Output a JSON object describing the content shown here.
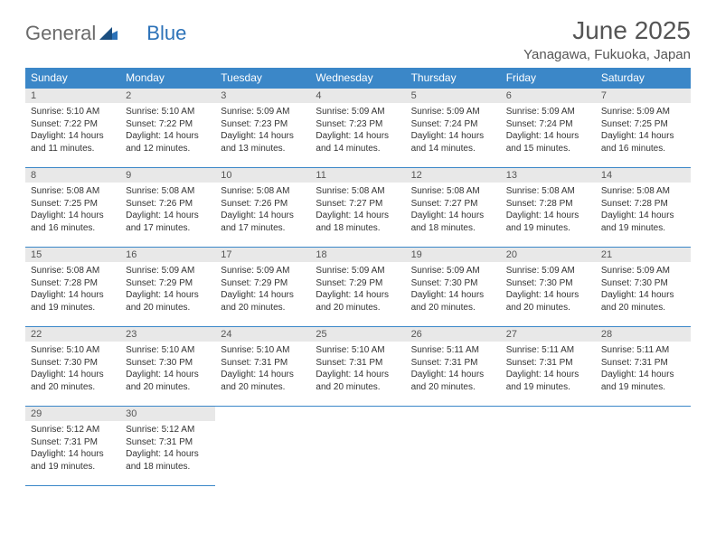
{
  "logo": {
    "text1": "General",
    "text2": "Blue"
  },
  "title": "June 2025",
  "location": "Yanagawa, Fukuoka, Japan",
  "colors": {
    "header_bg": "#3b87c8",
    "header_text": "#ffffff",
    "daynum_bg": "#e8e8e8",
    "text": "#333333",
    "border": "#3b87c8",
    "logo_gray": "#6b6b6b",
    "logo_blue": "#2c72b8"
  },
  "day_headers": [
    "Sunday",
    "Monday",
    "Tuesday",
    "Wednesday",
    "Thursday",
    "Friday",
    "Saturday"
  ],
  "weeks": [
    [
      {
        "n": "1",
        "sr": "5:10 AM",
        "ss": "7:22 PM",
        "dl": "14 hours and 11 minutes."
      },
      {
        "n": "2",
        "sr": "5:10 AM",
        "ss": "7:22 PM",
        "dl": "14 hours and 12 minutes."
      },
      {
        "n": "3",
        "sr": "5:09 AM",
        "ss": "7:23 PM",
        "dl": "14 hours and 13 minutes."
      },
      {
        "n": "4",
        "sr": "5:09 AM",
        "ss": "7:23 PM",
        "dl": "14 hours and 14 minutes."
      },
      {
        "n": "5",
        "sr": "5:09 AM",
        "ss": "7:24 PM",
        "dl": "14 hours and 14 minutes."
      },
      {
        "n": "6",
        "sr": "5:09 AM",
        "ss": "7:24 PM",
        "dl": "14 hours and 15 minutes."
      },
      {
        "n": "7",
        "sr": "5:09 AM",
        "ss": "7:25 PM",
        "dl": "14 hours and 16 minutes."
      }
    ],
    [
      {
        "n": "8",
        "sr": "5:08 AM",
        "ss": "7:25 PM",
        "dl": "14 hours and 16 minutes."
      },
      {
        "n": "9",
        "sr": "5:08 AM",
        "ss": "7:26 PM",
        "dl": "14 hours and 17 minutes."
      },
      {
        "n": "10",
        "sr": "5:08 AM",
        "ss": "7:26 PM",
        "dl": "14 hours and 17 minutes."
      },
      {
        "n": "11",
        "sr": "5:08 AM",
        "ss": "7:27 PM",
        "dl": "14 hours and 18 minutes."
      },
      {
        "n": "12",
        "sr": "5:08 AM",
        "ss": "7:27 PM",
        "dl": "14 hours and 18 minutes."
      },
      {
        "n": "13",
        "sr": "5:08 AM",
        "ss": "7:28 PM",
        "dl": "14 hours and 19 minutes."
      },
      {
        "n": "14",
        "sr": "5:08 AM",
        "ss": "7:28 PM",
        "dl": "14 hours and 19 minutes."
      }
    ],
    [
      {
        "n": "15",
        "sr": "5:08 AM",
        "ss": "7:28 PM",
        "dl": "14 hours and 19 minutes."
      },
      {
        "n": "16",
        "sr": "5:09 AM",
        "ss": "7:29 PM",
        "dl": "14 hours and 20 minutes."
      },
      {
        "n": "17",
        "sr": "5:09 AM",
        "ss": "7:29 PM",
        "dl": "14 hours and 20 minutes."
      },
      {
        "n": "18",
        "sr": "5:09 AM",
        "ss": "7:29 PM",
        "dl": "14 hours and 20 minutes."
      },
      {
        "n": "19",
        "sr": "5:09 AM",
        "ss": "7:30 PM",
        "dl": "14 hours and 20 minutes."
      },
      {
        "n": "20",
        "sr": "5:09 AM",
        "ss": "7:30 PM",
        "dl": "14 hours and 20 minutes."
      },
      {
        "n": "21",
        "sr": "5:09 AM",
        "ss": "7:30 PM",
        "dl": "14 hours and 20 minutes."
      }
    ],
    [
      {
        "n": "22",
        "sr": "5:10 AM",
        "ss": "7:30 PM",
        "dl": "14 hours and 20 minutes."
      },
      {
        "n": "23",
        "sr": "5:10 AM",
        "ss": "7:30 PM",
        "dl": "14 hours and 20 minutes."
      },
      {
        "n": "24",
        "sr": "5:10 AM",
        "ss": "7:31 PM",
        "dl": "14 hours and 20 minutes."
      },
      {
        "n": "25",
        "sr": "5:10 AM",
        "ss": "7:31 PM",
        "dl": "14 hours and 20 minutes."
      },
      {
        "n": "26",
        "sr": "5:11 AM",
        "ss": "7:31 PM",
        "dl": "14 hours and 20 minutes."
      },
      {
        "n": "27",
        "sr": "5:11 AM",
        "ss": "7:31 PM",
        "dl": "14 hours and 19 minutes."
      },
      {
        "n": "28",
        "sr": "5:11 AM",
        "ss": "7:31 PM",
        "dl": "14 hours and 19 minutes."
      }
    ],
    [
      {
        "n": "29",
        "sr": "5:12 AM",
        "ss": "7:31 PM",
        "dl": "14 hours and 19 minutes."
      },
      {
        "n": "30",
        "sr": "5:12 AM",
        "ss": "7:31 PM",
        "dl": "14 hours and 18 minutes."
      },
      null,
      null,
      null,
      null,
      null
    ]
  ],
  "labels": {
    "sunrise": "Sunrise:",
    "sunset": "Sunset:",
    "daylight": "Daylight:"
  }
}
